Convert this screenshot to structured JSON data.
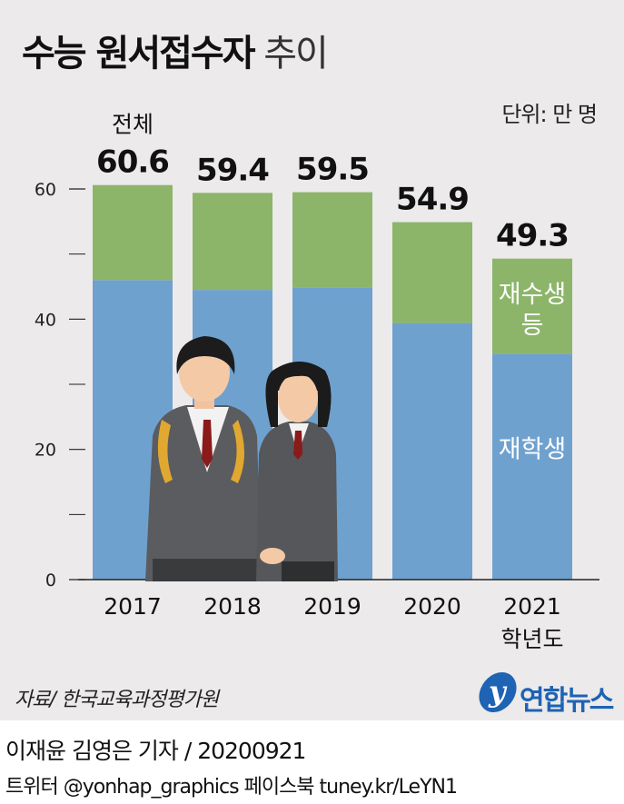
{
  "title": {
    "bold": "수능 원서접수자",
    "light": "추이"
  },
  "unit": "단위: 만 명",
  "source": "자료/ 한국교육과정평가원",
  "logo": {
    "mark": "y",
    "name": "연합뉴스"
  },
  "byline": "이재윤 김영은 기자 / 20200921",
  "social": "트위터 @yonhap_graphics  페이스북 tuney.kr/LeYN1",
  "colors": {
    "students": "#6fa1cf",
    "repeaters": "#8cb56a",
    "repeaters_label": "#ffffff"
  },
  "illustration": "students-illustration",
  "chart_data": {
    "type": "bar",
    "stacked": true,
    "categories": [
      "2017",
      "2018",
      "2019",
      "2020",
      "2021"
    ],
    "category_suffix": "학년도",
    "series": [
      {
        "name": "재학생",
        "values": [
          46.0,
          44.5,
          44.8,
          39.4,
          34.7
        ]
      },
      {
        "name": "재수생 등",
        "values": [
          14.6,
          14.9,
          14.7,
          15.5,
          14.6
        ]
      }
    ],
    "totals": [
      60.6,
      59.4,
      59.5,
      54.9,
      49.3
    ],
    "total_label": "전체",
    "yticks": [
      0,
      20,
      40,
      60
    ],
    "yminor": [
      10,
      30,
      50
    ],
    "ylim": [
      0,
      60
    ],
    "grid": false
  }
}
